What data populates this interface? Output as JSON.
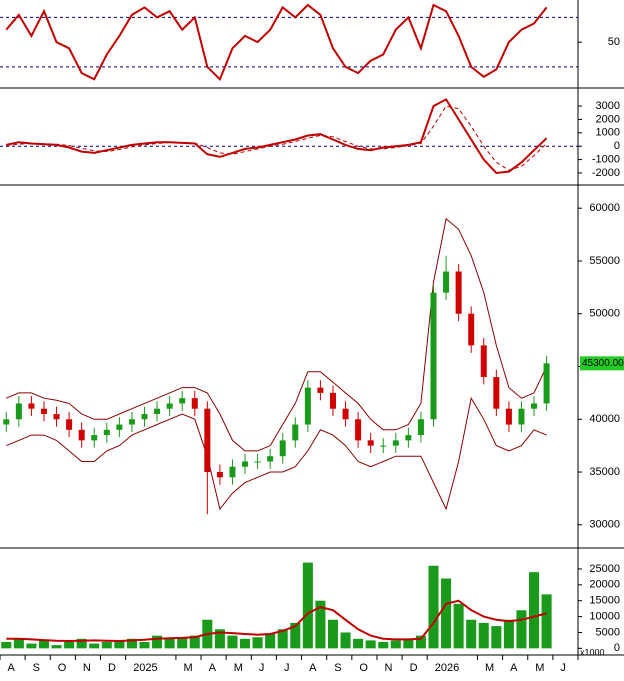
{
  "chart_data": [
    {
      "type": "line",
      "ylim": [
        13,
        84
      ],
      "yticks": [
        50
      ],
      "hlines": [
        30,
        70
      ],
      "series": [
        {
          "color": "#c00000",
          "dash": false,
          "values": [
            60,
            72,
            55,
            75,
            50,
            45,
            25,
            20,
            40,
            55,
            72,
            78,
            70,
            75,
            60,
            70,
            30,
            20,
            45,
            55,
            50,
            60,
            78,
            70,
            80,
            72,
            45,
            30,
            25,
            35,
            40,
            60,
            70,
            45,
            80,
            75,
            55,
            30,
            22,
            28,
            50,
            60,
            65,
            78,
            null,
            null
          ]
        }
      ]
    },
    {
      "type": "line",
      "ylim": [
        -2900,
        4350
      ],
      "yticks": [
        -2000,
        -1000,
        0,
        1000,
        2000,
        3000
      ],
      "hlines": [
        0
      ],
      "series": [
        {
          "color": "#c00000",
          "dash": false,
          "values": [
            100,
            300,
            200,
            150,
            100,
            -100,
            -400,
            -500,
            -300,
            -100,
            100,
            200,
            300,
            300,
            250,
            200,
            -600,
            -800,
            -500,
            -200,
            -100,
            100,
            300,
            500,
            800,
            900,
            500,
            100,
            -200,
            -300,
            -100,
            0,
            100,
            300,
            3000,
            3500,
            2000,
            500,
            -1000,
            -2000,
            -1900,
            -1200,
            -300,
            600,
            null,
            null
          ]
        },
        {
          "color": "#c00000",
          "dash": true,
          "values": [
            50,
            150,
            200,
            180,
            150,
            50,
            -150,
            -350,
            -400,
            -250,
            -50,
            100,
            200,
            280,
            280,
            230,
            -100,
            -500,
            -600,
            -400,
            -200,
            0,
            150,
            350,
            600,
            800,
            700,
            350,
            0,
            -200,
            -200,
            -100,
            50,
            200,
            1500,
            3000,
            2800,
            1500,
            0,
            -1200,
            -1800,
            -1500,
            -700,
            200,
            null,
            null
          ]
        }
      ]
    },
    {
      "type": "candlestick",
      "ylim": [
        27800,
        62200
      ],
      "yticks": [
        30000,
        35000,
        40000,
        45000,
        50000,
        55000,
        60000
      ],
      "up_color": "#1a9a1a",
      "down_color": "#d00000",
      "band_color": "#8b0000",
      "last_price": {
        "value": 45300,
        "label": "45300.00"
      },
      "open": [
        39500,
        40000,
        41500,
        41000,
        40500,
        40000,
        39000,
        38000,
        38500,
        39000,
        39500,
        40000,
        40500,
        41000,
        41500,
        42000,
        41000,
        35000,
        34500,
        35500,
        36000,
        36000,
        36500,
        38000,
        39500,
        43000,
        42500,
        41000,
        40000,
        38000,
        37500,
        37500,
        38000,
        38500,
        40000,
        52000,
        54000,
        50000,
        47000,
        44000,
        41000,
        39500,
        41000,
        41500,
        null,
        null
      ],
      "high": [
        40700,
        42200,
        42200,
        41700,
        41200,
        40700,
        39700,
        39200,
        39700,
        40200,
        40700,
        41200,
        41700,
        42200,
        42700,
        42700,
        41700,
        35700,
        36200,
        36700,
        36700,
        37200,
        38700,
        40200,
        43700,
        43700,
        43200,
        41700,
        40700,
        38700,
        38200,
        38700,
        39200,
        40700,
        52700,
        55500,
        54700,
        50700,
        47700,
        44700,
        41700,
        41700,
        42200,
        46000,
        null,
        null
      ],
      "low": [
        38800,
        39300,
        40300,
        39800,
        39300,
        38300,
        37300,
        37300,
        37800,
        38300,
        38800,
        39300,
        39800,
        40300,
        40800,
        40300,
        31000,
        33800,
        33800,
        34800,
        35300,
        35300,
        35800,
        37300,
        38800,
        41800,
        40300,
        39300,
        37300,
        36800,
        36800,
        36800,
        37300,
        37800,
        39300,
        51300,
        49300,
        46300,
        43300,
        40300,
        38800,
        38800,
        40300,
        40800,
        null,
        null
      ],
      "close": [
        40000,
        41500,
        41000,
        40500,
        40000,
        39000,
        38000,
        38500,
        39000,
        39500,
        40000,
        40500,
        41000,
        41500,
        42000,
        41000,
        35000,
        34500,
        35500,
        36000,
        36000,
        36500,
        38000,
        39500,
        43000,
        42500,
        41000,
        40000,
        38000,
        37500,
        37500,
        38000,
        38500,
        40000,
        52000,
        54000,
        50000,
        47000,
        44000,
        41000,
        39500,
        41000,
        41500,
        45300,
        null,
        null
      ],
      "upper": [
        42000,
        42500,
        42500,
        42000,
        41800,
        41500,
        40500,
        40000,
        40000,
        40500,
        41000,
        41500,
        42000,
        42500,
        43000,
        43000,
        42500,
        40500,
        38000,
        37000,
        37000,
        37500,
        39500,
        41500,
        44500,
        44500,
        43500,
        42500,
        41500,
        40000,
        39000,
        39000,
        39500,
        41500,
        53000,
        59000,
        58000,
        55500,
        52000,
        47000,
        43000,
        42000,
        42500,
        45000,
        null,
        null
      ],
      "lower": [
        37500,
        38000,
        38500,
        38500,
        38000,
        37000,
        36000,
        36000,
        37000,
        37500,
        38500,
        39000,
        39500,
        40000,
        40500,
        40000,
        36500,
        31500,
        33000,
        34000,
        34500,
        35000,
        35000,
        35500,
        37000,
        39000,
        38500,
        37500,
        36000,
        35500,
        36000,
        36500,
        36500,
        36500,
        34000,
        31500,
        36000,
        42000,
        40000,
        37500,
        37000,
        37500,
        39000,
        38500,
        null,
        null
      ]
    },
    {
      "type": "bar",
      "ylim": [
        -2100,
        31600
      ],
      "yticks": [
        0,
        5000,
        10000,
        15000,
        20000,
        25000
      ],
      "unit_label": "x1000",
      "color": "#1a9a1a",
      "categories": [
        "A",
        null,
        "S",
        null,
        "O",
        null,
        "N",
        null,
        "D",
        null,
        "2025",
        null,
        null,
        null,
        "M",
        null,
        "A",
        null,
        "M",
        null,
        "J",
        null,
        "J",
        null,
        "A",
        null,
        "S",
        null,
        "O",
        null,
        "N",
        null,
        "D",
        null,
        "2026",
        null,
        null,
        null,
        "M",
        null,
        "A",
        null,
        "M",
        null,
        "J",
        null
      ],
      "values": [
        2000,
        3000,
        1500,
        2500,
        1000,
        2000,
        3000,
        1500,
        2000,
        2500,
        3000,
        2000,
        4000,
        3000,
        3500,
        4000,
        9000,
        6000,
        4000,
        3000,
        3500,
        4500,
        6000,
        8000,
        27000,
        15000,
        9000,
        5000,
        3000,
        2500,
        2000,
        2500,
        3000,
        4000,
        26000,
        22000,
        14000,
        9000,
        8000,
        7000,
        9000,
        12000,
        24000,
        17000,
        null,
        null
      ],
      "overlay": {
        "color": "#c00000",
        "values": [
          3000,
          3000,
          2800,
          2600,
          2400,
          2300,
          2400,
          2500,
          2400,
          2300,
          2500,
          2700,
          3000,
          3200,
          3300,
          3500,
          4500,
          5000,
          4800,
          4500,
          4300,
          4500,
          5500,
          7000,
          11000,
          13000,
          12000,
          9000,
          6000,
          4000,
          3000,
          2800,
          2800,
          3000,
          8000,
          14000,
          15000,
          12000,
          10000,
          9000,
          8500,
          9000,
          10000,
          11000,
          null,
          null
        ]
      }
    }
  ]
}
